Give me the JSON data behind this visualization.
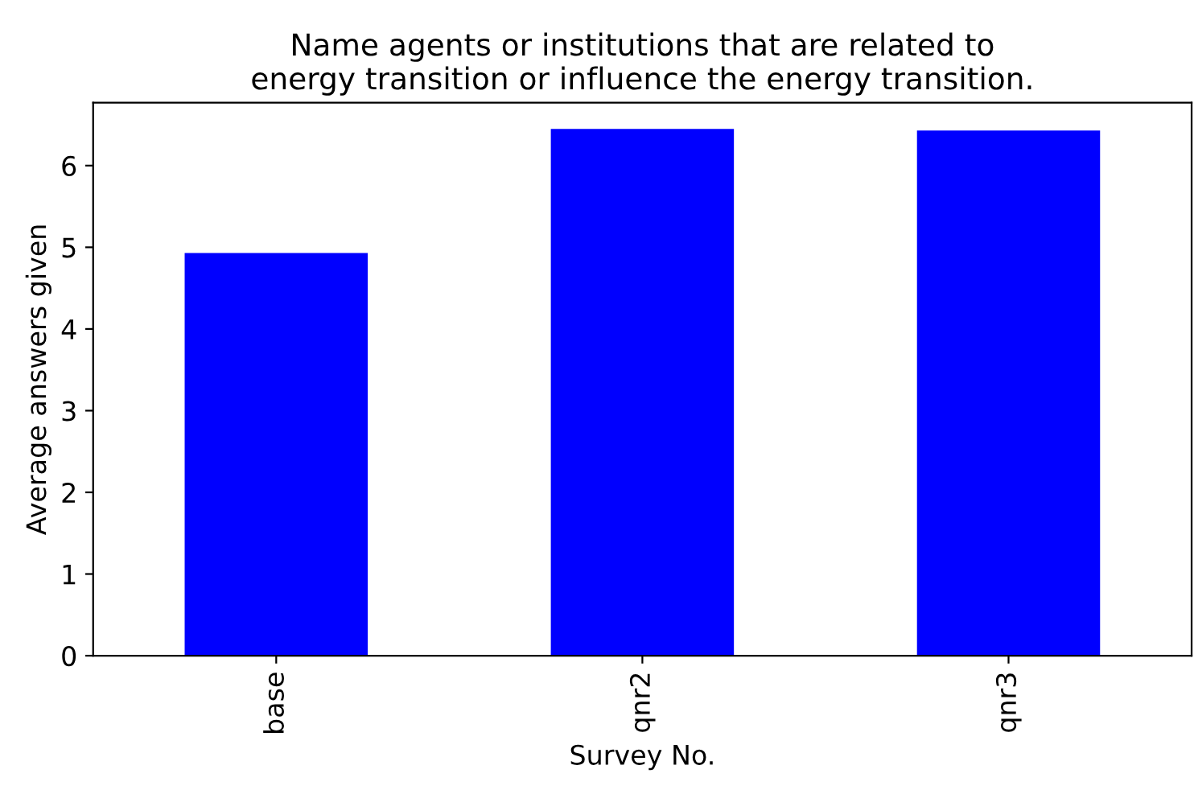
{
  "chart_data": {
    "type": "bar",
    "title": "Name agents or institutions that are related to\nenergy transition or influence the energy transition.",
    "xlabel": "Survey No.",
    "ylabel": "Average answers given",
    "categories": [
      "base",
      "qnr2",
      "qnr3"
    ],
    "values": [
      4.93,
      6.45,
      6.43
    ],
    "color": "#0000ff",
    "ylim": [
      0,
      6.77
    ],
    "yticks": [
      0,
      1,
      2,
      3,
      4,
      5,
      6
    ],
    "grid": false,
    "legend": false
  }
}
